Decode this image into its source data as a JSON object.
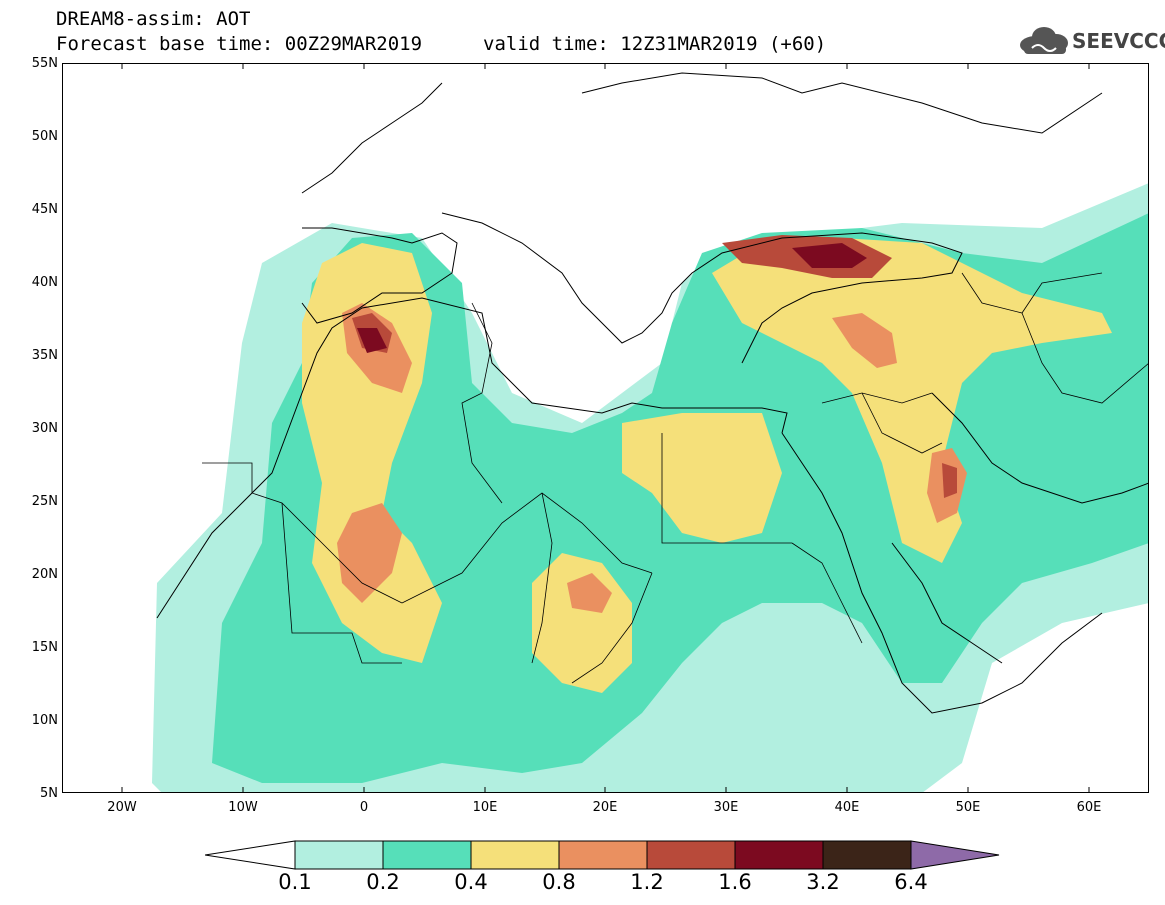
{
  "header": {
    "title": "DREAM8-assim: AOT",
    "base_time": "Forecast base time: 00Z29MAR2019",
    "valid_time": "valid time: 12Z31MAR2019 (+60)",
    "logo_text": "SEEVCCC"
  },
  "map": {
    "lat_labels": [
      "55N",
      "50N",
      "45N",
      "40N",
      "35N",
      "30N",
      "25N",
      "20N",
      "15N",
      "10N",
      "5N"
    ],
    "lon_labels": [
      "20W",
      "10W",
      "0",
      "10E",
      "20E",
      "30E",
      "40E",
      "50E",
      "60E"
    ],
    "extent": {
      "lon_min": -25,
      "lon_max": 65,
      "lat_min": 5,
      "lat_max": 55
    }
  },
  "legend": {
    "labels": [
      "0.1",
      "0.2",
      "0.4",
      "0.8",
      "1.2",
      "1.6",
      "3.2",
      "6.4"
    ],
    "colors": [
      "#ffffff",
      "#b2efe0",
      "#56dfb9",
      "#f5e07a",
      "#ea9060",
      "#b84a3a",
      "#7c0a20",
      "#3b2418",
      "#8e6aa8"
    ]
  }
}
